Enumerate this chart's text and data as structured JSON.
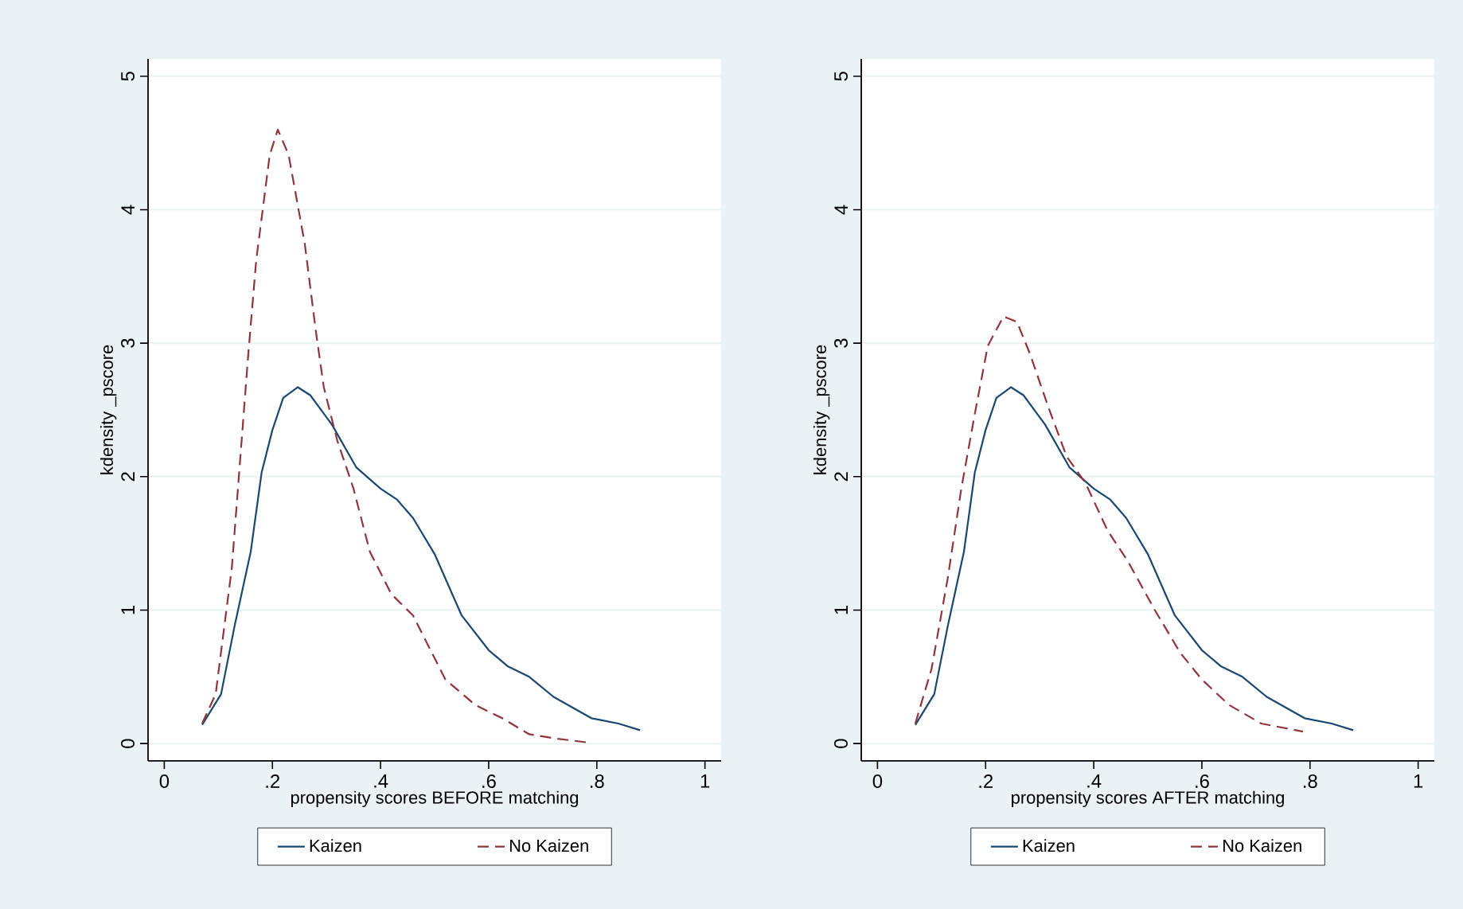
{
  "chart_data": [
    {
      "type": "line",
      "xlabel": "propensity scores BEFORE matching",
      "ylabel": "kdensity _pscore",
      "xlim": [
        -0.03,
        1.03
      ],
      "ylim": [
        -0.13,
        5.13
      ],
      "xticks": [
        0,
        {
          "value": 0.2,
          "label": ".2"
        },
        {
          "value": 0.4,
          "label": ".4"
        },
        {
          "value": 0.6,
          "label": ".6"
        },
        {
          "value": 0.8,
          "label": ".8"
        },
        1
      ],
      "yticks": [
        0,
        1,
        2,
        3,
        4,
        5
      ],
      "grid": "y",
      "legend": "bottom",
      "series": [
        {
          "name": "Kaizen",
          "color": "#1a476f",
          "line_style": "solid",
          "x": [
            0.07,
            0.105,
            0.13,
            0.16,
            0.18,
            0.2,
            0.22,
            0.247,
            0.27,
            0.31,
            0.355,
            0.4,
            0.43,
            0.46,
            0.5,
            0.55,
            0.6,
            0.635,
            0.675,
            0.72,
            0.79,
            0.84,
            0.88
          ],
          "values": [
            0.14,
            0.37,
            0.88,
            1.44,
            2.03,
            2.35,
            2.59,
            2.67,
            2.61,
            2.39,
            2.07,
            1.91,
            1.83,
            1.69,
            1.42,
            0.96,
            0.7,
            0.58,
            0.5,
            0.35,
            0.19,
            0.15,
            0.1
          ]
        },
        {
          "name": "No Kaizen",
          "color": "#90353b",
          "line_style": "dashed",
          "x": [
            0.07,
            0.095,
            0.125,
            0.14,
            0.155,
            0.17,
            0.195,
            0.21,
            0.23,
            0.26,
            0.28,
            0.295,
            0.32,
            0.35,
            0.38,
            0.42,
            0.46,
            0.52,
            0.575,
            0.625,
            0.675,
            0.72,
            0.78
          ],
          "values": [
            0.15,
            0.37,
            1.32,
            2.11,
            2.9,
            3.62,
            4.41,
            4.6,
            4.41,
            3.74,
            3.1,
            2.67,
            2.27,
            1.91,
            1.44,
            1.12,
            0.96,
            0.48,
            0.29,
            0.19,
            0.07,
            0.04,
            0.01
          ]
        }
      ]
    },
    {
      "type": "line",
      "xlabel": "propensity scores AFTER matching",
      "ylabel": "kdensity _pscore",
      "xlim": [
        -0.03,
        1.03
      ],
      "ylim": [
        -0.13,
        5.13
      ],
      "xticks": [
        0,
        {
          "value": 0.2,
          "label": ".2"
        },
        {
          "value": 0.4,
          "label": ".4"
        },
        {
          "value": 0.6,
          "label": ".6"
        },
        {
          "value": 0.8,
          "label": ".8"
        },
        1
      ],
      "yticks": [
        0,
        1,
        2,
        3,
        4,
        5
      ],
      "grid": "y",
      "legend": "bottom",
      "series": [
        {
          "name": "Kaizen",
          "color": "#1a476f",
          "line_style": "solid",
          "x": [
            0.07,
            0.105,
            0.13,
            0.16,
            0.18,
            0.2,
            0.22,
            0.247,
            0.27,
            0.31,
            0.355,
            0.4,
            0.43,
            0.46,
            0.5,
            0.55,
            0.6,
            0.635,
            0.675,
            0.72,
            0.79,
            0.84,
            0.88
          ],
          "values": [
            0.14,
            0.37,
            0.88,
            1.44,
            2.03,
            2.35,
            2.59,
            2.67,
            2.61,
            2.39,
            2.07,
            1.91,
            1.83,
            1.69,
            1.42,
            0.96,
            0.7,
            0.58,
            0.5,
            0.35,
            0.19,
            0.15,
            0.1
          ]
        },
        {
          "name": "No Kaizen",
          "color": "#90353b",
          "line_style": "dashed",
          "x": [
            0.07,
            0.1,
            0.13,
            0.155,
            0.18,
            0.204,
            0.233,
            0.258,
            0.282,
            0.317,
            0.35,
            0.385,
            0.425,
            0.464,
            0.513,
            0.56,
            0.6,
            0.65,
            0.71,
            0.787
          ],
          "values": [
            0.15,
            0.56,
            1.24,
            1.91,
            2.47,
            2.98,
            3.2,
            3.16,
            2.92,
            2.51,
            2.15,
            1.95,
            1.6,
            1.36,
            1.0,
            0.68,
            0.48,
            0.29,
            0.15,
            0.09
          ]
        }
      ]
    }
  ]
}
